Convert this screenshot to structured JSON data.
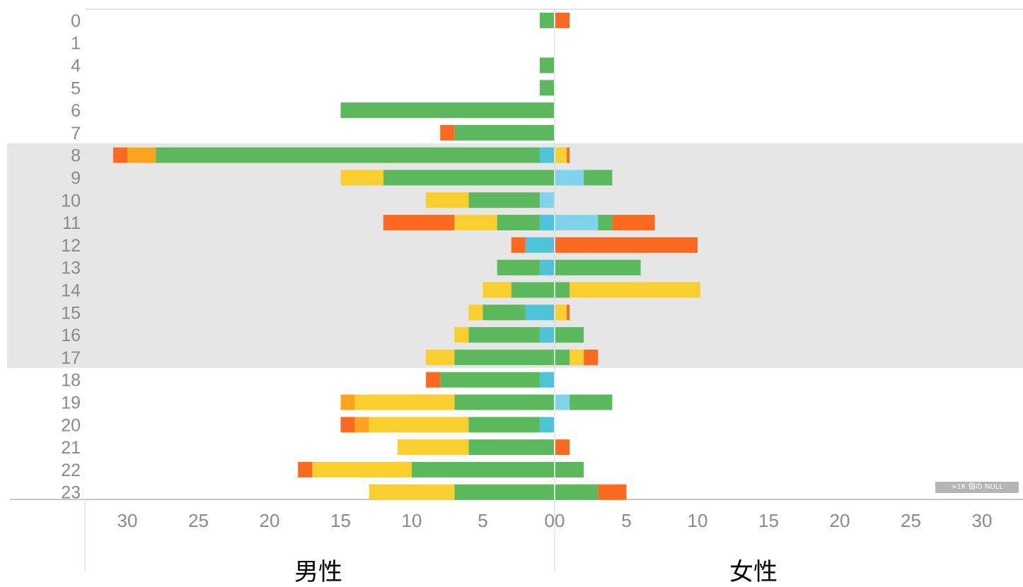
{
  "chart_data": {
    "type": "bar",
    "orientation": "horizontal",
    "layout": "diverging (population pyramid)",
    "rows": [
      "0",
      "1",
      "4",
      "5",
      "6",
      "7",
      "8",
      "9",
      "10",
      "11",
      "12",
      "13",
      "14",
      "15",
      "16",
      "17",
      "18",
      "19",
      "20",
      "21",
      "22",
      "23"
    ],
    "highlight_rows": [
      "8",
      "9",
      "10",
      "11",
      "12",
      "13",
      "14",
      "15",
      "16",
      "17"
    ],
    "xlim": [
      -33,
      33
    ],
    "x_ticks_left": [
      "30",
      "25",
      "20",
      "15",
      "10",
      "5",
      "0"
    ],
    "x_ticks_right": [
      "0",
      "5",
      "10",
      "15",
      "20",
      "25",
      "30"
    ],
    "left_label": "男性",
    "right_label": "女性",
    "null_indicator": ">1K 個の NULL",
    "series_colors": {
      "light_blue": "#7fd3ea",
      "blue": "#4fc3d9",
      "green": "#5cb85c",
      "yellow": "#f8cf2e",
      "orange": "#fca41e",
      "red": "#fc6a21"
    },
    "segments_order_from_center": [
      "blue",
      "green",
      "yellow",
      "orange",
      "red"
    ],
    "left": [
      [
        [
          "green",
          1
        ],
        [
          "red",
          0
        ]
      ],
      [],
      [
        [
          "green",
          1
        ]
      ],
      [
        [
          "green",
          1
        ]
      ],
      [
        [
          "green",
          15
        ]
      ],
      [
        [
          "green",
          7
        ],
        [
          "red",
          1
        ]
      ],
      [
        [
          "blue",
          1
        ],
        [
          "green",
          27
        ],
        [
          "orange",
          2
        ],
        [
          "red",
          1
        ]
      ],
      [
        [
          "green",
          12
        ],
        [
          "yellow",
          3
        ]
      ],
      [
        [
          "light_blue",
          1
        ],
        [
          "green",
          5
        ],
        [
          "yellow",
          3
        ]
      ],
      [
        [
          "blue",
          1
        ],
        [
          "green",
          3
        ],
        [
          "yellow",
          3
        ],
        [
          "red",
          5
        ]
      ],
      [
        [
          "blue",
          2
        ],
        [
          "red",
          1
        ]
      ],
      [
        [
          "blue",
          1
        ],
        [
          "green",
          3
        ]
      ],
      [
        [
          "green",
          3
        ],
        [
          "yellow",
          2
        ]
      ],
      [
        [
          "blue",
          2
        ],
        [
          "green",
          3
        ],
        [
          "yellow",
          1
        ]
      ],
      [
        [
          "blue",
          1
        ],
        [
          "green",
          5
        ],
        [
          "yellow",
          1
        ]
      ],
      [
        [
          "green",
          7
        ],
        [
          "yellow",
          2
        ]
      ],
      [
        [
          "blue",
          1
        ],
        [
          "green",
          7
        ],
        [
          "red",
          1
        ]
      ],
      [
        [
          "green",
          7
        ],
        [
          "yellow",
          7
        ],
        [
          "orange",
          1
        ]
      ],
      [
        [
          "blue",
          1
        ],
        [
          "green",
          5
        ],
        [
          "yellow",
          7
        ],
        [
          "orange",
          1
        ],
        [
          "red",
          1
        ]
      ],
      [
        [
          "green",
          6
        ],
        [
          "yellow",
          5
        ]
      ],
      [
        [
          "green",
          10
        ],
        [
          "yellow",
          7
        ],
        [
          "red",
          1
        ]
      ],
      [
        [
          "green",
          7
        ],
        [
          "yellow",
          6
        ]
      ]
    ],
    "right": [
      [
        [
          "red",
          1
        ]
      ],
      [],
      [],
      [],
      [],
      [],
      [
        [
          "yellow",
          0.8
        ],
        [
          "red",
          0.2
        ]
      ],
      [
        [
          "light_blue",
          2
        ],
        [
          "green",
          2
        ]
      ],
      [],
      [
        [
          "light_blue",
          3
        ],
        [
          "green",
          1
        ],
        [
          "red",
          3
        ]
      ],
      [
        [
          "red",
          10
        ]
      ],
      [
        [
          "green",
          6
        ]
      ],
      [
        [
          "green",
          1
        ],
        [
          "yellow",
          9.2
        ]
      ],
      [
        [
          "yellow",
          0.8
        ],
        [
          "red",
          0.2
        ]
      ],
      [
        [
          "green",
          2
        ]
      ],
      [
        [
          "green",
          1
        ],
        [
          "yellow",
          1
        ],
        [
          "red",
          1
        ]
      ],
      [],
      [
        [
          "light_blue",
          1
        ],
        [
          "green",
          3
        ]
      ],
      [],
      [
        [
          "red",
          1
        ]
      ],
      [
        [
          "green",
          2
        ]
      ],
      [
        [
          "green",
          3
        ],
        [
          "red",
          2
        ]
      ]
    ]
  }
}
